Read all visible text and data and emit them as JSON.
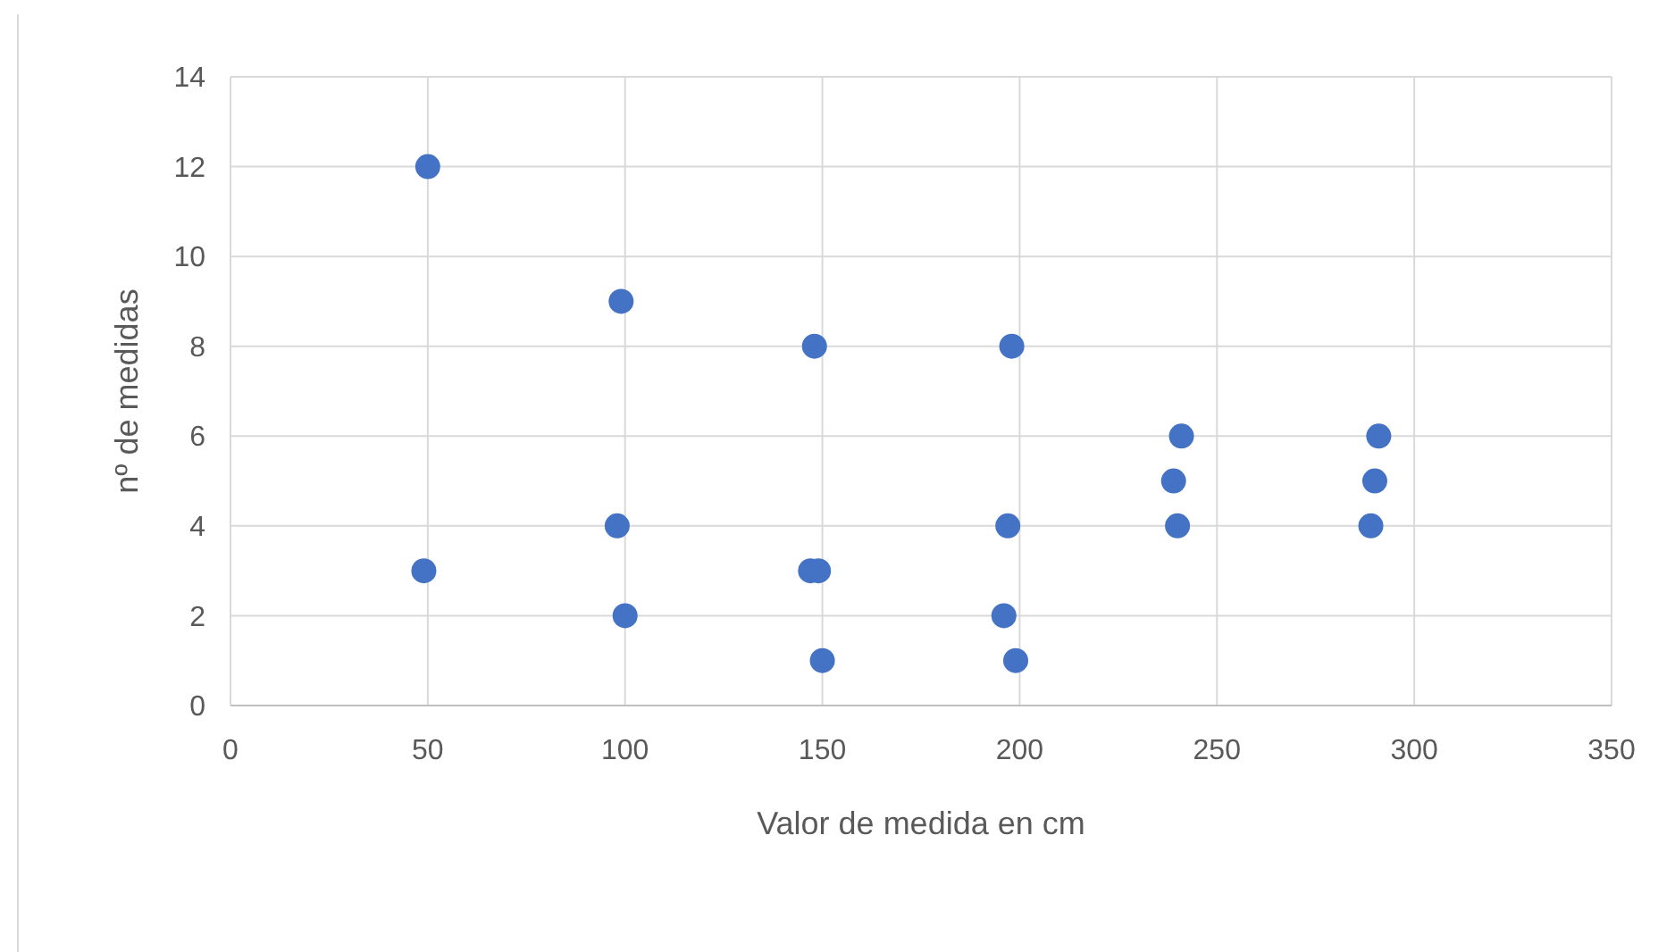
{
  "chart_data": {
    "type": "scatter",
    "xlabel": "Valor de medida en cm",
    "ylabel": "nº de medidas",
    "x": [
      50,
      49,
      99,
      98,
      100,
      148,
      147,
      149,
      150,
      198,
      197,
      196,
      199,
      241,
      239,
      240,
      291,
      290,
      289
    ],
    "values": [
      12,
      3,
      9,
      4,
      2,
      8,
      3,
      3,
      1,
      8,
      4,
      2,
      1,
      6,
      5,
      4,
      6,
      5,
      4
    ],
    "color": "#4472c4",
    "marker": "circle",
    "grid": true,
    "xlim": [
      0,
      350
    ],
    "xticks": [
      0,
      50,
      100,
      150,
      200,
      250,
      300,
      350
    ],
    "ylim": [
      0,
      14
    ],
    "yticks": [
      0,
      2,
      4,
      6,
      8,
      10,
      12,
      14
    ]
  }
}
